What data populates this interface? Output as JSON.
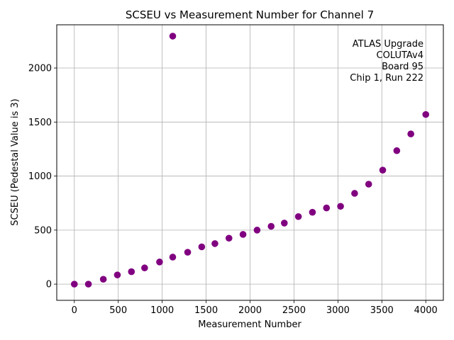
{
  "chart_data": {
    "type": "scatter",
    "title": "SCSEU vs Measurement Number for Channel 7",
    "xlabel": "Measurement Number",
    "ylabel": "SCSEU (Pedestal Value is 3)",
    "xlim": [
      -200,
      4200
    ],
    "ylim": [
      -150,
      2400
    ],
    "xticks": [
      0,
      500,
      1000,
      1500,
      2000,
      2500,
      3000,
      3500,
      4000
    ],
    "yticks": [
      0,
      500,
      1000,
      1500,
      2000
    ],
    "grid": true,
    "marker_color": "#800080",
    "annotation": [
      "ATLAS Upgrade",
      "COLUTAv4",
      "Board 95",
      "Chip 1, Run 222"
    ],
    "series": [
      {
        "name": "Channel 7",
        "x": [
          0,
          160,
          330,
          490,
          650,
          800,
          970,
          1120,
          1120,
          1290,
          1450,
          1600,
          1760,
          1920,
          2080,
          2240,
          2390,
          2550,
          2710,
          2870,
          3030,
          3190,
          3350,
          3510,
          3670,
          3830,
          4000
        ],
        "y": [
          0,
          0,
          45,
          85,
          115,
          150,
          205,
          250,
          2295,
          295,
          345,
          375,
          425,
          460,
          500,
          535,
          565,
          625,
          665,
          705,
          720,
          840,
          925,
          1055,
          1235,
          1390,
          1570
        ]
      }
    ]
  }
}
